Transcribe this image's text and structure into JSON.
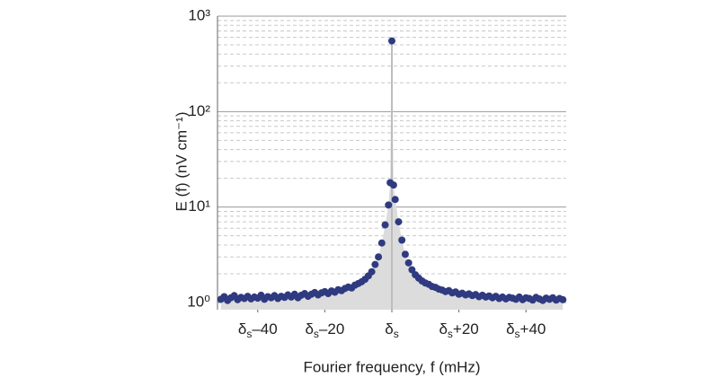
{
  "chart_data": {
    "type": "scatter",
    "x_label": "Fourier frequency, f (mHz)",
    "y_label": "E (f) (nV cm⁻¹)",
    "log_y": true,
    "grid": true,
    "minor_grid": true,
    "stem": true,
    "area": true,
    "color": "#2f3a80",
    "area_color": "#dcdcdc",
    "stem_color": "#bdbdbd",
    "xlim": [
      -52,
      52
    ],
    "ylim": [
      0.84,
      1000
    ],
    "xticks": [
      {
        "value": -40,
        "label": "δs–40"
      },
      {
        "value": -20,
        "label": "δs–20"
      },
      {
        "value": 0,
        "label": "δs"
      },
      {
        "value": 20,
        "label": "δs+20"
      },
      {
        "value": 40,
        "label": "δs+40"
      }
    ],
    "yticks": [
      {
        "value": 1,
        "label": "10⁰"
      },
      {
        "value": 10,
        "label": "10¹"
      },
      {
        "value": 100,
        "label": "10²"
      },
      {
        "value": 1000,
        "label": "10³"
      }
    ],
    "minor_yticks": [
      2,
      3,
      4,
      5,
      6,
      7,
      8,
      9,
      20,
      30,
      40,
      50,
      60,
      70,
      80,
      90,
      200,
      300,
      400,
      500,
      600,
      700,
      800,
      900
    ],
    "x": [
      -51,
      -50,
      -49,
      -48,
      -47,
      -46,
      -45,
      -44,
      -43,
      -42,
      -41,
      -40,
      -39,
      -38,
      -37,
      -36,
      -35,
      -34,
      -33,
      -32,
      -31,
      -30,
      -29,
      -28,
      -27,
      -26,
      -25,
      -24,
      -23,
      -22,
      -21,
      -20,
      -19,
      -18,
      -17,
      -16,
      -15,
      -14,
      -13,
      -12,
      -11,
      -10,
      -9,
      -8,
      -7,
      -6,
      -5,
      -4,
      -3,
      -2,
      -1,
      -0.5,
      0,
      0.5,
      1,
      2,
      3,
      4,
      5,
      6,
      7,
      8,
      9,
      10,
      11,
      12,
      13,
      14,
      15,
      16,
      17,
      18,
      19,
      20,
      21,
      22,
      23,
      24,
      25,
      26,
      27,
      28,
      29,
      30,
      31,
      32,
      33,
      34,
      35,
      36,
      37,
      38,
      39,
      40,
      41,
      42,
      43,
      44,
      45,
      46,
      47,
      48,
      49,
      50,
      51
    ],
    "values": [
      1.08,
      1.15,
      1.05,
      1.12,
      1.18,
      1.07,
      1.13,
      1.1,
      1.16,
      1.09,
      1.14,
      1.11,
      1.19,
      1.08,
      1.15,
      1.12,
      1.18,
      1.1,
      1.16,
      1.13,
      1.2,
      1.14,
      1.22,
      1.12,
      1.19,
      1.24,
      1.16,
      1.22,
      1.27,
      1.2,
      1.26,
      1.3,
      1.24,
      1.32,
      1.28,
      1.36,
      1.33,
      1.4,
      1.45,
      1.42,
      1.52,
      1.58,
      1.65,
      1.75,
      1.9,
      2.1,
      2.5,
      3.0,
      4.2,
      6.5,
      10.5,
      18,
      550,
      17,
      12,
      7,
      4.5,
      3.2,
      2.6,
      2.2,
      1.95,
      1.8,
      1.68,
      1.6,
      1.55,
      1.47,
      1.44,
      1.38,
      1.35,
      1.3,
      1.33,
      1.26,
      1.29,
      1.22,
      1.25,
      1.2,
      1.23,
      1.18,
      1.21,
      1.15,
      1.19,
      1.14,
      1.17,
      1.12,
      1.16,
      1.1,
      1.14,
      1.09,
      1.13,
      1.11,
      1.08,
      1.14,
      1.07,
      1.12,
      1.1,
      1.06,
      1.13,
      1.09,
      1.05,
      1.11,
      1.08,
      1.12,
      1.06,
      1.1,
      1.07
    ]
  }
}
